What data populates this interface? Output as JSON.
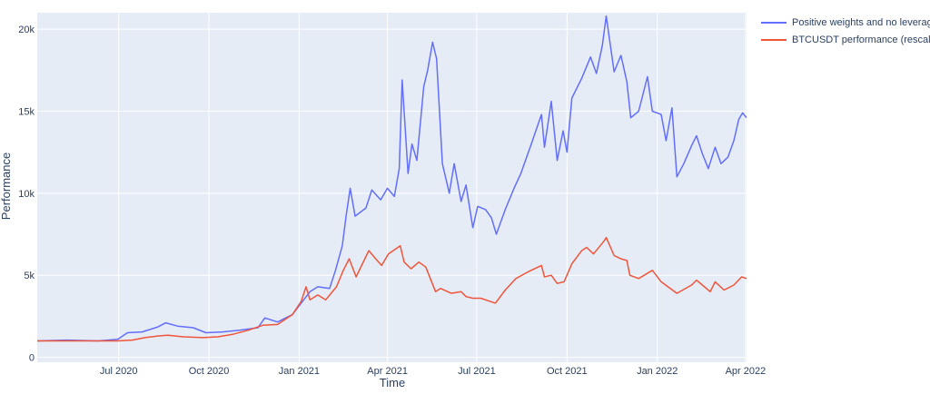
{
  "chart_data": {
    "type": "line",
    "title": "",
    "xlabel": "Time",
    "ylabel": "Performance",
    "x_tick_labels": [
      "Jul 2020",
      "Oct 2020",
      "Jan 2021",
      "Apr 2021",
      "Jul 2021",
      "Oct 2021",
      "Jan 2022",
      "Apr 2022"
    ],
    "x_tick_dates": [
      "2020-07-01",
      "2020-10-01",
      "2021-01-01",
      "2021-04-01",
      "2021-07-01",
      "2021-10-01",
      "2022-01-01",
      "2022-04-01"
    ],
    "y_tick_labels": [
      "0",
      "5k",
      "10k",
      "15k",
      "20k"
    ],
    "y_tick_values": [
      0,
      5000,
      10000,
      15000,
      20000
    ],
    "xlim": [
      "2020-04-09",
      "2022-04-02"
    ],
    "ylim": [
      -300,
      21000
    ],
    "grid": true,
    "legend_position": "top-right",
    "series": [
      {
        "name": "Positive weights and no leverage",
        "color": "#636efa",
        "points": [
          [
            "2020-04-09",
            1000
          ],
          [
            "2020-05-10",
            1050
          ],
          [
            "2020-06-10",
            1000
          ],
          [
            "2020-06-30",
            1100
          ],
          [
            "2020-07-10",
            1500
          ],
          [
            "2020-07-25",
            1550
          ],
          [
            "2020-08-10",
            1850
          ],
          [
            "2020-08-18",
            2100
          ],
          [
            "2020-08-30",
            1900
          ],
          [
            "2020-09-15",
            1800
          ],
          [
            "2020-09-28",
            1500
          ],
          [
            "2020-10-15",
            1550
          ],
          [
            "2020-11-01",
            1650
          ],
          [
            "2020-11-20",
            1800
          ],
          [
            "2020-11-27",
            2400
          ],
          [
            "2020-12-10",
            2150
          ],
          [
            "2020-12-25",
            2600
          ],
          [
            "2021-01-03",
            3300
          ],
          [
            "2021-01-12",
            4000
          ],
          [
            "2021-01-20",
            4300
          ],
          [
            "2021-02-01",
            4200
          ],
          [
            "2021-02-07",
            5300
          ],
          [
            "2021-02-14",
            6800
          ],
          [
            "2021-02-18",
            8700
          ],
          [
            "2021-02-22",
            10300
          ],
          [
            "2021-02-27",
            8600
          ],
          [
            "2021-03-10",
            9100
          ],
          [
            "2021-03-16",
            10200
          ],
          [
            "2021-03-25",
            9600
          ],
          [
            "2021-04-01",
            10300
          ],
          [
            "2021-04-08",
            9800
          ],
          [
            "2021-04-13",
            11500
          ],
          [
            "2021-04-16",
            16900
          ],
          [
            "2021-04-22",
            11200
          ],
          [
            "2021-04-26",
            13000
          ],
          [
            "2021-05-01",
            12000
          ],
          [
            "2021-05-05",
            14600
          ],
          [
            "2021-05-08",
            16500
          ],
          [
            "2021-05-12",
            17500
          ],
          [
            "2021-05-17",
            19200
          ],
          [
            "2021-05-21",
            18200
          ],
          [
            "2021-05-27",
            11800
          ],
          [
            "2021-06-03",
            10000
          ],
          [
            "2021-06-08",
            11800
          ],
          [
            "2021-06-15",
            9500
          ],
          [
            "2021-06-20",
            10500
          ],
          [
            "2021-06-27",
            7900
          ],
          [
            "2021-07-02",
            9200
          ],
          [
            "2021-07-10",
            9000
          ],
          [
            "2021-07-16",
            8500
          ],
          [
            "2021-07-21",
            7500
          ],
          [
            "2021-07-30",
            9000
          ],
          [
            "2021-08-08",
            10300
          ],
          [
            "2021-08-15",
            11200
          ],
          [
            "2021-08-25",
            12900
          ],
          [
            "2021-09-05",
            14800
          ],
          [
            "2021-09-08",
            12800
          ],
          [
            "2021-09-15",
            15600
          ],
          [
            "2021-09-21",
            12000
          ],
          [
            "2021-09-27",
            13800
          ],
          [
            "2021-10-01",
            12500
          ],
          [
            "2021-10-06",
            15800
          ],
          [
            "2021-10-16",
            17000
          ],
          [
            "2021-10-25",
            18300
          ],
          [
            "2021-10-31",
            17300
          ],
          [
            "2021-11-06",
            19000
          ],
          [
            "2021-11-10",
            20800
          ],
          [
            "2021-11-18",
            17400
          ],
          [
            "2021-11-25",
            18400
          ],
          [
            "2021-12-01",
            16800
          ],
          [
            "2021-12-05",
            14600
          ],
          [
            "2021-12-13",
            15000
          ],
          [
            "2021-12-22",
            17100
          ],
          [
            "2021-12-27",
            15000
          ],
          [
            "2022-01-05",
            14800
          ],
          [
            "2022-01-10",
            13200
          ],
          [
            "2022-01-16",
            15200
          ],
          [
            "2022-01-21",
            11000
          ],
          [
            "2022-01-28",
            11800
          ],
          [
            "2022-02-05",
            12900
          ],
          [
            "2022-02-10",
            13500
          ],
          [
            "2022-02-16",
            12400
          ],
          [
            "2022-02-22",
            11500
          ],
          [
            "2022-03-01",
            12800
          ],
          [
            "2022-03-07",
            11800
          ],
          [
            "2022-03-14",
            12200
          ],
          [
            "2022-03-20",
            13200
          ],
          [
            "2022-03-25",
            14500
          ],
          [
            "2022-03-29",
            14900
          ],
          [
            "2022-04-02",
            14600
          ]
        ]
      },
      {
        "name": "BTCUSDT performance (rescaled)",
        "color": "#ef553b",
        "points": [
          [
            "2020-04-09",
            1000
          ],
          [
            "2020-05-10",
            1000
          ],
          [
            "2020-06-10",
            1000
          ],
          [
            "2020-06-30",
            1000
          ],
          [
            "2020-07-15",
            1050
          ],
          [
            "2020-07-28",
            1200
          ],
          [
            "2020-08-10",
            1300
          ],
          [
            "2020-08-20",
            1350
          ],
          [
            "2020-09-05",
            1250
          ],
          [
            "2020-09-25",
            1200
          ],
          [
            "2020-10-10",
            1250
          ],
          [
            "2020-10-25",
            1400
          ],
          [
            "2020-11-10",
            1650
          ],
          [
            "2020-11-25",
            1950
          ],
          [
            "2020-12-10",
            2000
          ],
          [
            "2020-12-25",
            2600
          ],
          [
            "2021-01-03",
            3400
          ],
          [
            "2021-01-08",
            4300
          ],
          [
            "2021-01-12",
            3500
          ],
          [
            "2021-01-20",
            3800
          ],
          [
            "2021-01-28",
            3500
          ],
          [
            "2021-02-08",
            4300
          ],
          [
            "2021-02-15",
            5300
          ],
          [
            "2021-02-21",
            6000
          ],
          [
            "2021-02-28",
            4900
          ],
          [
            "2021-03-13",
            6500
          ],
          [
            "2021-03-20",
            6000
          ],
          [
            "2021-03-26",
            5600
          ],
          [
            "2021-04-02",
            6300
          ],
          [
            "2021-04-14",
            6800
          ],
          [
            "2021-04-18",
            5800
          ],
          [
            "2021-04-25",
            5400
          ],
          [
            "2021-05-03",
            5800
          ],
          [
            "2021-05-10",
            5500
          ],
          [
            "2021-05-20",
            4000
          ],
          [
            "2021-05-25",
            4200
          ],
          [
            "2021-06-05",
            3900
          ],
          [
            "2021-06-15",
            4000
          ],
          [
            "2021-06-20",
            3700
          ],
          [
            "2021-06-27",
            3600
          ],
          [
            "2021-07-05",
            3600
          ],
          [
            "2021-07-20",
            3300
          ],
          [
            "2021-07-30",
            4100
          ],
          [
            "2021-08-10",
            4800
          ],
          [
            "2021-08-22",
            5200
          ],
          [
            "2021-09-05",
            5600
          ],
          [
            "2021-09-08",
            4900
          ],
          [
            "2021-09-15",
            5000
          ],
          [
            "2021-09-21",
            4500
          ],
          [
            "2021-09-28",
            4600
          ],
          [
            "2021-10-06",
            5700
          ],
          [
            "2021-10-16",
            6500
          ],
          [
            "2021-10-21",
            6700
          ],
          [
            "2021-10-28",
            6300
          ],
          [
            "2021-11-08",
            7100
          ],
          [
            "2021-11-10",
            7300
          ],
          [
            "2021-11-18",
            6200
          ],
          [
            "2021-11-25",
            6000
          ],
          [
            "2021-12-01",
            5900
          ],
          [
            "2021-12-04",
            5000
          ],
          [
            "2021-12-13",
            4800
          ],
          [
            "2021-12-27",
            5300
          ],
          [
            "2022-01-05",
            4600
          ],
          [
            "2022-01-21",
            3900
          ],
          [
            "2022-02-05",
            4400
          ],
          [
            "2022-02-10",
            4700
          ],
          [
            "2022-02-16",
            4400
          ],
          [
            "2022-02-24",
            4000
          ],
          [
            "2022-03-01",
            4600
          ],
          [
            "2022-03-10",
            4100
          ],
          [
            "2022-03-20",
            4400
          ],
          [
            "2022-03-28",
            4900
          ],
          [
            "2022-04-02",
            4800
          ]
        ]
      }
    ]
  }
}
